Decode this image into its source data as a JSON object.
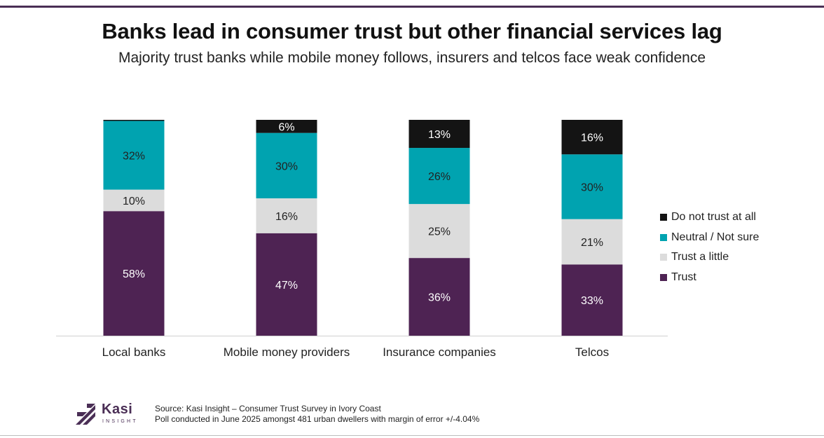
{
  "title": "Banks lead in consumer trust but other financial services lag",
  "subtitle": "Majority trust banks while mobile money follows, insurers and telcos face weak confidence",
  "chart_data": {
    "type": "bar",
    "stacked": true,
    "orientation": "vertical",
    "unit": "%",
    "categories": [
      "Local banks",
      "Mobile money providers",
      "Insurance companies",
      "Telcos"
    ],
    "series": [
      {
        "name": "Trust",
        "color": "#4e2353",
        "label_color": "#ffffff",
        "values": [
          58,
          47,
          36,
          33
        ]
      },
      {
        "name": "Trust a little",
        "color": "#dcdcdc",
        "label_color": "#222222",
        "values": [
          10,
          16,
          25,
          21
        ]
      },
      {
        "name": "Neutral / Not sure",
        "color": "#00a3b0",
        "label_color": "#222222",
        "values": [
          32,
          30,
          26,
          30
        ]
      },
      {
        "name": "Do not trust at all",
        "color": "#141414",
        "label_color": "#ffffff",
        "values": [
          0.5,
          6,
          13,
          16
        ]
      }
    ],
    "legend_order": [
      "Do not trust at all",
      "Neutral / Not sure",
      "Trust a little",
      "Trust"
    ],
    "legend_position": "right",
    "hidden_labels": {
      "Local banks": [
        "Do not trust at all"
      ]
    },
    "ylim": [
      0,
      100
    ],
    "xlabel": "",
    "ylabel": "",
    "grid": false
  },
  "footer": {
    "logo_name": "Kasi",
    "logo_sub": "INSIGHT",
    "source_line1": "Source: Kasi Insight – Consumer Trust Survey in Ivory Coast",
    "source_line2": "Poll conducted in June 2025 amongst 481 urban dwellers with margin of error +/-4.04%"
  }
}
